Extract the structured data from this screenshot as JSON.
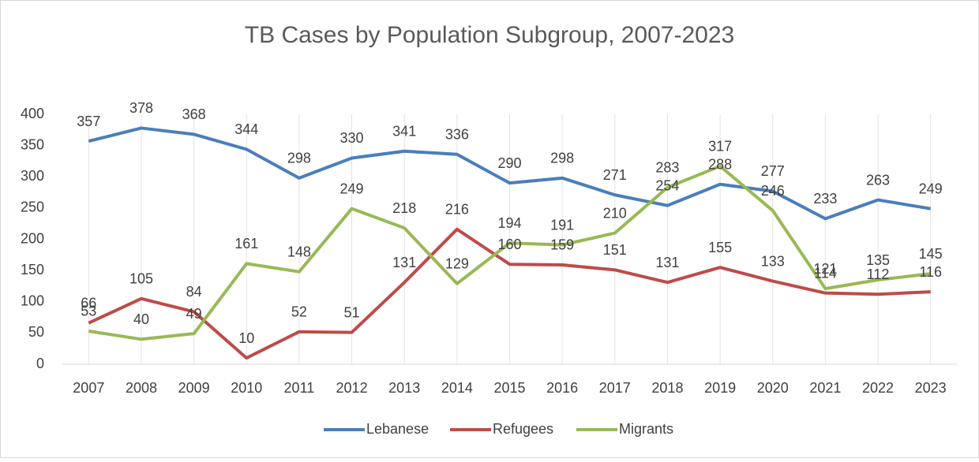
{
  "chart_data": {
    "type": "line",
    "title": "TB Cases by Population Subgroup, 2007-2023",
    "categories": [
      "2007",
      "2008",
      "2009",
      "2010",
      "2011",
      "2012",
      "2013",
      "2014",
      "2015",
      "2016",
      "2017",
      "2018",
      "2019",
      "2020",
      "2021",
      "2022",
      "2023"
    ],
    "series": [
      {
        "name": "Lebanese",
        "color": "#4a7ebb",
        "values": [
          357,
          378,
          368,
          344,
          298,
          330,
          341,
          336,
          290,
          298,
          271,
          254,
          288,
          277,
          233,
          263,
          249
        ]
      },
      {
        "name": "Refugees",
        "color": "#be4b48",
        "values": [
          66,
          105,
          84,
          10,
          52,
          51,
          131,
          216,
          160,
          159,
          151,
          131,
          155,
          133,
          114,
          112,
          116
        ]
      },
      {
        "name": "Migrants",
        "color": "#98b954",
        "values": [
          53,
          40,
          49,
          161,
          148,
          249,
          218,
          129,
          194,
          191,
          210,
          283,
          317,
          246,
          121,
          135,
          145
        ]
      }
    ],
    "ylim": [
      0,
      400
    ],
    "yticks": [
      0,
      50,
      100,
      150,
      200,
      250,
      300,
      350,
      400
    ],
    "legend": "bottom",
    "data_labels": true
  }
}
